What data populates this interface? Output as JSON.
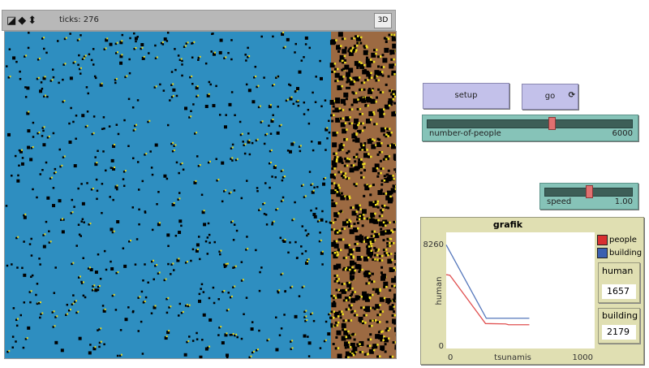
{
  "view": {
    "ticks_label": "ticks: 276",
    "three_d_label": "3D",
    "water_color": "#2e8ec0",
    "land_color": "#9c6a42"
  },
  "buttons": {
    "setup": "setup",
    "go": "go"
  },
  "sliders": [
    {
      "label": "number-of-people",
      "value": "6000",
      "fraction": 0.6
    },
    {
      "label": "speed",
      "value": "1.00",
      "fraction": 0.5
    }
  ],
  "plot": {
    "title": "grafik"
  },
  "monitors": [
    {
      "label": "human",
      "value": "1657"
    },
    {
      "label": "building",
      "value": "2179"
    }
  ],
  "chart_data": {
    "type": "line",
    "title": "grafik",
    "xlabel": "tsunamis",
    "ylabel": "human",
    "xlim": [
      0,
      1000
    ],
    "ylim": [
      0,
      8260
    ],
    "x_tick_labels": [
      "0",
      "1000"
    ],
    "y_tick_labels": [
      "0",
      "8260"
    ],
    "legend": "right",
    "series": [
      {
        "name": "people",
        "color": "#e05050",
        "points": [
          [
            0,
            5700
          ],
          [
            25,
            5650
          ],
          [
            265,
            1750
          ],
          [
            400,
            1720
          ],
          [
            420,
            1657
          ],
          [
            560,
            1657
          ]
        ]
      },
      {
        "name": "building",
        "color": "#5577bb",
        "points": [
          [
            0,
            8100
          ],
          [
            270,
            2179
          ],
          [
            560,
            2179
          ]
        ]
      }
    ]
  }
}
